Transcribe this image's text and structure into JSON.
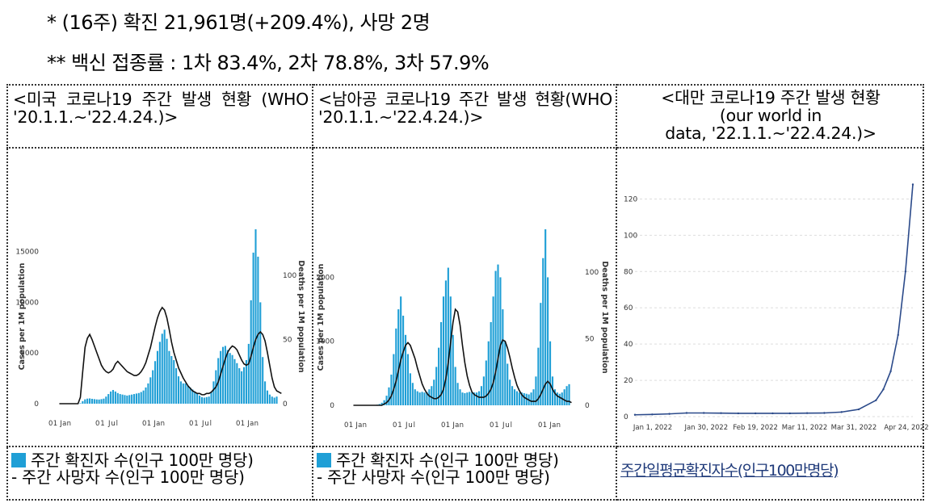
{
  "notes": {
    "line1": "* (16주) 확진 21,961명(+209.4%), 사망 2명",
    "line2": "** 백신 접종률 : 1차 83.4%, 2차 78.8%, 3차 57.9%"
  },
  "panels": [
    {
      "title": "<미국 코로나19 주간 발생 현황 (WHO '20.1.1.~'22.4.24.)>",
      "legend_bar": "주간 확진자 수(인구 100만 명당)",
      "legend_line": "- 주간 사망자 수(인구 100만 명당)"
    },
    {
      "title": "<남아공 코로나19 주간 발생 현황(WHO '20.1.1.~'22.4.24.)>",
      "legend_bar": "주간 확진자 수(인구 100만 명당)",
      "legend_line": "- 주간 사망자 수(인구 100만 명당)"
    },
    {
      "title_l1": "<대만 코로나19 주간 발생 현황",
      "title_l2": "(our world in",
      "title_l3": "data, '22.1.1.~'22.4.24.)>",
      "legend_line": "주간일평균확진자수(인구100만명당)"
    }
  ],
  "colors": {
    "bar": "#1f9fd6",
    "death_line": "#111111",
    "taiwan_line": "#2b4a8a"
  },
  "chart_data": [
    {
      "type": "bar",
      "xlabel": "",
      "ylabel": "Cases per 1M population",
      "y2label": "Deaths per 1M population",
      "xticks": [
        "01 Jan",
        "01 Jul",
        "01 Jan",
        "01 Jul",
        "01 Jan"
      ],
      "yticks": [
        0,
        5000,
        10000,
        15000
      ],
      "y2ticks": [
        0,
        50,
        100
      ],
      "ylim": [
        0,
        17200
      ],
      "y2lim": [
        0,
        136
      ],
      "series": [
        {
          "values": [
            0,
            0,
            0,
            0,
            0,
            0,
            0,
            0,
            0,
            50,
            250,
            430,
            500,
            520,
            480,
            450,
            420,
            410,
            450,
            500,
            700,
            950,
            1200,
            1350,
            1200,
            1050,
            950,
            900,
            850,
            800,
            850,
            900,
            950,
            1000,
            1050,
            1150,
            1300,
            1600,
            2000,
            2600,
            3300,
            4200,
            5200,
            6100,
            6900,
            7300,
            6400,
            5200,
            4700,
            4300,
            3500,
            2700,
            2200,
            2000,
            2000,
            1800,
            1600,
            1400,
            1200,
            1000,
            800,
            650,
            600,
            650,
            700,
            1100,
            2200,
            3300,
            4500,
            5200,
            5600,
            5700,
            5300,
            5000,
            4800,
            4400,
            4000,
            3500,
            3200,
            3600,
            4300,
            5900,
            10200,
            14900,
            17200,
            14500,
            10000,
            4600,
            2200,
            1300,
            900,
            700,
            600,
            700
          ]
        },
        {
          "values": [
            0,
            0,
            0,
            0,
            0,
            0,
            0,
            0,
            0,
            5,
            25,
            44,
            51,
            54,
            50,
            45,
            40,
            35,
            30,
            27,
            25,
            24,
            25,
            27,
            31,
            33,
            31,
            29,
            27,
            25,
            24,
            23,
            22,
            22,
            23,
            25,
            28,
            32,
            38,
            44,
            52,
            60,
            67,
            72,
            75,
            73,
            67,
            58,
            48,
            40,
            34,
            28,
            24,
            20,
            17,
            14,
            12,
            10,
            9,
            8,
            8,
            7,
            7,
            8,
            8,
            9,
            11,
            13,
            17,
            23,
            29,
            35,
            40,
            43,
            45,
            44,
            42,
            38,
            34,
            31,
            30,
            31,
            37,
            44,
            50,
            54,
            56,
            54,
            49,
            40,
            30,
            20,
            13,
            10,
            9,
            8
          ]
        }
      ]
    },
    {
      "type": "bar",
      "xlabel": "",
      "ylabel": "Cases per 1M population",
      "y2label": "Deaths per 1M population",
      "xticks": [
        "01 Jan",
        "01 Jul",
        "01 Jan",
        "01 Jul",
        "01 Jan"
      ],
      "yticks": [
        0,
        1000,
        2000
      ],
      "y2ticks": [
        0,
        50,
        100
      ],
      "ylim": [
        0,
        2750
      ],
      "y2lim": [
        0,
        132
      ],
      "series": [
        {
          "values": [
            0,
            0,
            0,
            0,
            0,
            0,
            0,
            0,
            0,
            5,
            10,
            20,
            40,
            80,
            150,
            280,
            480,
            800,
            1200,
            1500,
            1700,
            1400,
            1100,
            800,
            500,
            350,
            250,
            220,
            200,
            210,
            200,
            210,
            250,
            300,
            400,
            600,
            900,
            1300,
            1700,
            1950,
            2150,
            1700,
            1100,
            600,
            350,
            250,
            200,
            190,
            200,
            210,
            200,
            200,
            200,
            220,
            300,
            450,
            700,
            1000,
            1300,
            1700,
            2100,
            2200,
            2000,
            1500,
            1000,
            650,
            400,
            300,
            250,
            220,
            200,
            200,
            190,
            180,
            170,
            200,
            250,
            450,
            900,
            1600,
            2300,
            2750,
            2000,
            1000,
            450,
            250,
            200,
            180,
            200,
            250,
            300,
            330
          ]
        },
        {
          "values": [
            0,
            0,
            0,
            0,
            0,
            0,
            0,
            0,
            0,
            0,
            0,
            0,
            0,
            1,
            2,
            4,
            7,
            12,
            18,
            26,
            34,
            40,
            45,
            47,
            45,
            40,
            35,
            28,
            22,
            16,
            12,
            9,
            7,
            6,
            5,
            5,
            6,
            8,
            12,
            20,
            32,
            47,
            62,
            72,
            70,
            60,
            45,
            32,
            22,
            15,
            10,
            8,
            7,
            6,
            6,
            6,
            7,
            9,
            12,
            17,
            25,
            35,
            45,
            49,
            48,
            43,
            36,
            28,
            21,
            15,
            11,
            8,
            6,
            5,
            4,
            3,
            3,
            3,
            5,
            8,
            12,
            16,
            18,
            16,
            12,
            9,
            7,
            6,
            5,
            4,
            3,
            3,
            2
          ]
        }
      ]
    },
    {
      "type": "line",
      "xlabel": "",
      "ylabel": "",
      "xticks": [
        "Jan 1, 2022",
        "Jan 30, 2022",
        "Feb 19, 2022",
        "Mar 11, 2022",
        "Mar 31, 2022",
        "Apr 24, 2022"
      ],
      "yticks": [
        0,
        20,
        40,
        60,
        80,
        100,
        120
      ],
      "ylim": [
        0,
        130
      ],
      "x": [
        "2022-01-01",
        "2022-01-08",
        "2022-01-15",
        "2022-01-22",
        "2022-01-29",
        "2022-02-05",
        "2022-02-12",
        "2022-02-19",
        "2022-02-26",
        "2022-03-05",
        "2022-03-12",
        "2022-03-19",
        "2022-03-26",
        "2022-04-02",
        "2022-04-09",
        "2022-04-12",
        "2022-04-15",
        "2022-04-18",
        "2022-04-21",
        "2022-04-24"
      ],
      "series": [
        {
          "values": [
            1.0,
            1.2,
            1.5,
            2.0,
            2.0,
            1.9,
            1.8,
            1.8,
            1.8,
            1.8,
            1.9,
            2.0,
            2.5,
            4.0,
            9.0,
            15.0,
            25.0,
            45.0,
            80.0,
            128.0
          ]
        }
      ]
    }
  ]
}
